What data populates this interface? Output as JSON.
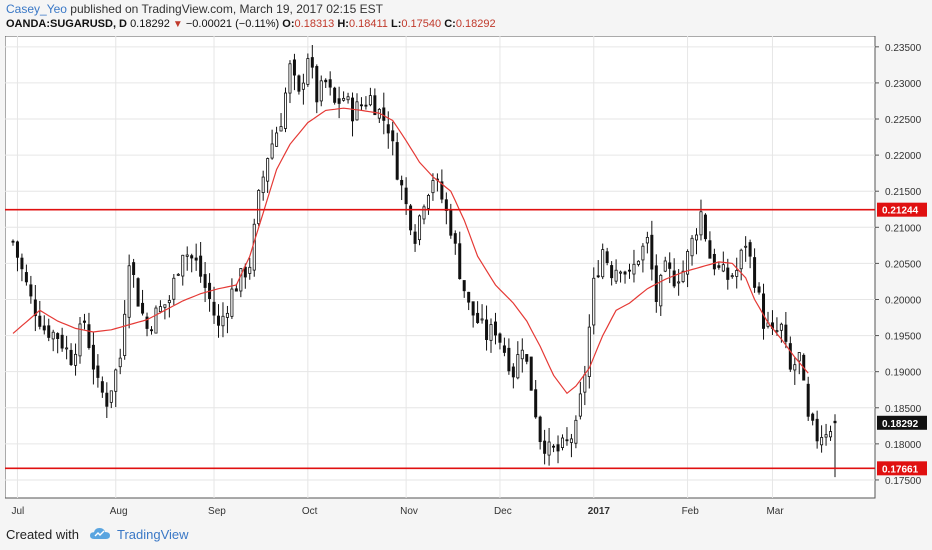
{
  "header": {
    "author": "Casey_Yeo",
    "published": "published on TradingView.com, March 19, 2017 02:15 EST",
    "symbol": "OANDA:SUGARUSD, D",
    "last": "0.18292",
    "change": "−0.00021 (−0.11%)",
    "o_label": "O:",
    "o_value": "0.18313",
    "h_label": "H:",
    "h_value": "0.18411",
    "l_label": "L:",
    "l_value": "0.17540",
    "c_label": "C:",
    "c_value": "0.18292"
  },
  "footer": {
    "created_with": "Created with",
    "brand": "TradingView"
  },
  "colors": {
    "candle": "#111111",
    "ma": "#e53935",
    "level": "#e01010",
    "grid": "#e6e6e6"
  },
  "chart_data": {
    "type": "candlestick",
    "ylim": [
      0.1725,
      0.2365
    ],
    "y_ticks": [
      "0.17500",
      "0.18000",
      "0.18500",
      "0.19000",
      "0.19500",
      "0.20000",
      "0.20500",
      "0.21000",
      "0.21500",
      "0.22000",
      "0.22500",
      "0.23000",
      "0.23500"
    ],
    "x_labels": [
      {
        "label": "Jul",
        "bar": 1
      },
      {
        "label": "Aug",
        "bar": 23
      },
      {
        "label": "Sep",
        "bar": 45
      },
      {
        "label": "Oct",
        "bar": 66
      },
      {
        "label": "Nov",
        "bar": 88
      },
      {
        "label": "Dec",
        "bar": 109
      },
      {
        "label": "2017",
        "bar": 130
      },
      {
        "label": "Feb",
        "bar": 151
      },
      {
        "label": "Mar",
        "bar": 170
      }
    ],
    "bar_count": 185,
    "horizontal_levels": [
      {
        "value": 0.21244,
        "label": "0.21244"
      },
      {
        "value": 0.17661,
        "label": "0.17661"
      }
    ],
    "last_price": {
      "value": 0.18292,
      "label": "0.18292"
    },
    "close_anchors": [
      [
        0,
        0.208
      ],
      [
        4,
        0.2
      ],
      [
        7,
        0.196
      ],
      [
        10,
        0.195
      ],
      [
        13,
        0.192
      ],
      [
        16,
        0.197
      ],
      [
        19,
        0.188
      ],
      [
        21,
        0.186
      ],
      [
        24,
        0.192
      ],
      [
        26,
        0.206
      ],
      [
        28,
        0.2
      ],
      [
        30,
        0.196
      ],
      [
        32,
        0.198
      ],
      [
        35,
        0.2
      ],
      [
        38,
        0.207
      ],
      [
        41,
        0.205
      ],
      [
        44,
        0.2
      ],
      [
        46,
        0.196
      ],
      [
        49,
        0.201
      ],
      [
        51,
        0.203
      ],
      [
        53,
        0.205
      ],
      [
        55,
        0.214
      ],
      [
        57,
        0.22
      ],
      [
        60,
        0.225
      ],
      [
        62,
        0.232
      ],
      [
        64,
        0.228
      ],
      [
        66,
        0.234
      ],
      [
        68,
        0.228
      ],
      [
        70,
        0.23
      ],
      [
        72,
        0.227
      ],
      [
        74,
        0.228
      ],
      [
        76,
        0.226
      ],
      [
        78,
        0.227
      ],
      [
        80,
        0.228
      ],
      [
        82,
        0.226
      ],
      [
        84,
        0.224
      ],
      [
        86,
        0.218
      ],
      [
        88,
        0.213
      ],
      [
        90,
        0.209
      ],
      [
        92,
        0.214
      ],
      [
        94,
        0.217
      ],
      [
        96,
        0.214
      ],
      [
        98,
        0.21
      ],
      [
        100,
        0.204
      ],
      [
        102,
        0.199
      ],
      [
        104,
        0.197
      ],
      [
        106,
        0.195
      ],
      [
        108,
        0.196
      ],
      [
        110,
        0.193
      ],
      [
        112,
        0.19
      ],
      [
        114,
        0.194
      ],
      [
        116,
        0.188
      ],
      [
        118,
        0.181
      ],
      [
        120,
        0.179
      ],
      [
        122,
        0.179
      ],
      [
        124,
        0.18
      ],
      [
        126,
        0.182
      ],
      [
        128,
        0.19
      ],
      [
        130,
        0.202
      ],
      [
        132,
        0.207
      ],
      [
        134,
        0.204
      ],
      [
        136,
        0.205
      ],
      [
        138,
        0.203
      ],
      [
        140,
        0.206
      ],
      [
        142,
        0.208
      ],
      [
        144,
        0.2
      ],
      [
        146,
        0.204
      ],
      [
        148,
        0.203
      ],
      [
        150,
        0.204
      ],
      [
        152,
        0.208
      ],
      [
        154,
        0.212
      ],
      [
        156,
        0.206
      ],
      [
        158,
        0.204
      ],
      [
        160,
        0.203
      ],
      [
        162,
        0.204
      ],
      [
        164,
        0.208
      ],
      [
        166,
        0.203
      ],
      [
        168,
        0.197
      ],
      [
        170,
        0.195
      ],
      [
        172,
        0.196
      ],
      [
        174,
        0.19
      ],
      [
        176,
        0.192
      ],
      [
        178,
        0.183
      ],
      [
        180,
        0.181
      ],
      [
        182,
        0.182
      ],
      [
        184,
        0.1829
      ]
    ],
    "ma_anchors": [
      [
        0,
        0.1953
      ],
      [
        6,
        0.1985
      ],
      [
        10,
        0.197
      ],
      [
        14,
        0.196
      ],
      [
        18,
        0.1955
      ],
      [
        22,
        0.1958
      ],
      [
        26,
        0.1965
      ],
      [
        30,
        0.1972
      ],
      [
        34,
        0.1985
      ],
      [
        38,
        0.1998
      ],
      [
        42,
        0.2008
      ],
      [
        46,
        0.2015
      ],
      [
        50,
        0.202
      ],
      [
        53,
        0.206
      ],
      [
        56,
        0.212
      ],
      [
        59,
        0.218
      ],
      [
        62,
        0.2215
      ],
      [
        66,
        0.2245
      ],
      [
        70,
        0.2262
      ],
      [
        74,
        0.2265
      ],
      [
        78,
        0.2262
      ],
      [
        82,
        0.2258
      ],
      [
        85,
        0.2248
      ],
      [
        88,
        0.222
      ],
      [
        91,
        0.219
      ],
      [
        94,
        0.217
      ],
      [
        98,
        0.215
      ],
      [
        101,
        0.211
      ],
      [
        104,
        0.206
      ],
      [
        108,
        0.202
      ],
      [
        112,
        0.1995
      ],
      [
        115,
        0.197
      ],
      [
        118,
        0.1935
      ],
      [
        121,
        0.1895
      ],
      [
        124,
        0.187
      ],
      [
        126,
        0.188
      ],
      [
        129,
        0.1905
      ],
      [
        132,
        0.195
      ],
      [
        135,
        0.1985
      ],
      [
        138,
        0.1995
      ],
      [
        142,
        0.2015
      ],
      [
        146,
        0.2028
      ],
      [
        150,
        0.2038
      ],
      [
        154,
        0.2045
      ],
      [
        158,
        0.2052
      ],
      [
        161,
        0.205
      ],
      [
        164,
        0.203
      ],
      [
        166,
        0.2
      ],
      [
        169,
        0.1968
      ],
      [
        172,
        0.1945
      ],
      [
        175,
        0.192
      ],
      [
        178,
        0.1898
      ]
    ]
  }
}
